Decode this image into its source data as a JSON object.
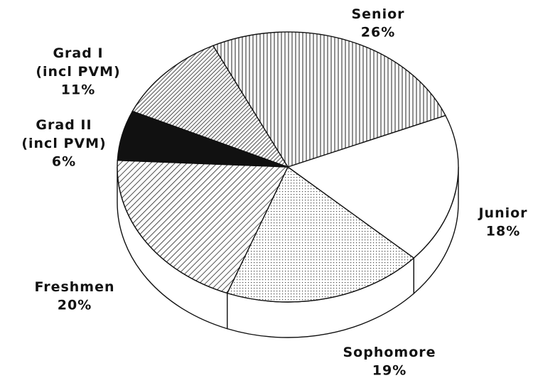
{
  "chart_data": {
    "type": "pie",
    "categories": [
      "Senior",
      "Junior",
      "Sophomore",
      "Freshmen",
      "Grad II (incl PVM)",
      "Grad I (incl PVM)"
    ],
    "values": [
      26,
      18,
      19,
      20,
      6,
      11
    ],
    "value_labels": [
      "26%",
      "18%",
      "19%",
      "20%",
      "6%",
      "11%"
    ],
    "patterns": [
      "vertical",
      "none",
      "dots",
      "diagonal",
      "solid",
      "diagonal-dense"
    ],
    "color": "#111111"
  }
}
